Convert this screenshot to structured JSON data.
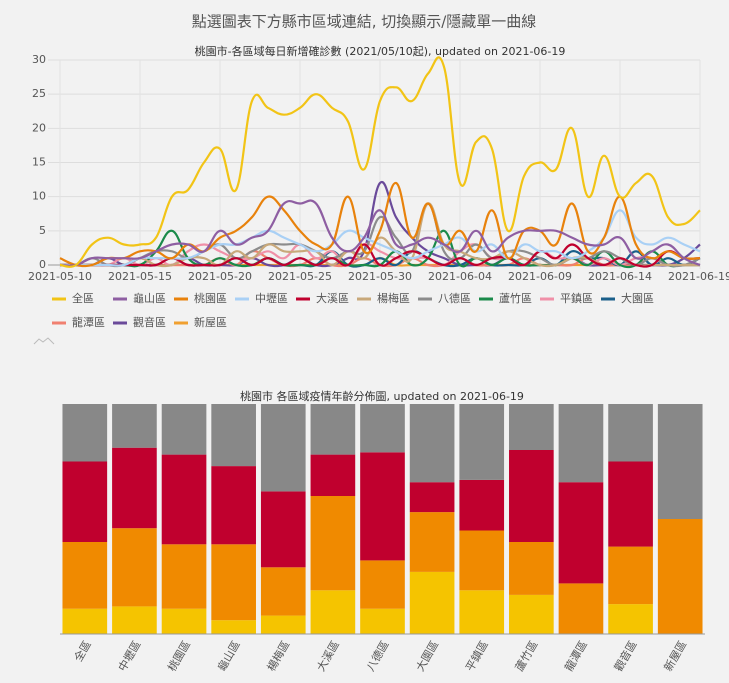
{
  "header": {
    "title": "點選圖表下方縣市區域連結, 切換顯示/隱藏單一曲線"
  },
  "chart_data": [
    {
      "type": "line",
      "title": "桃園市-各區域每日新增確診數 (2021/05/10起), updated on 2021-06-19",
      "x": [
        "2021-05-10",
        "2021-05-11",
        "2021-05-12",
        "2021-05-13",
        "2021-05-14",
        "2021-05-15",
        "2021-05-16",
        "2021-05-17",
        "2021-05-18",
        "2021-05-19",
        "2021-05-20",
        "2021-05-21",
        "2021-05-22",
        "2021-05-23",
        "2021-05-24",
        "2021-05-25",
        "2021-05-26",
        "2021-05-27",
        "2021-05-28",
        "2021-05-29",
        "2021-05-30",
        "2021-05-31",
        "2021-06-01",
        "2021-06-02",
        "2021-06-03",
        "2021-06-04",
        "2021-06-05",
        "2021-06-06",
        "2021-06-07",
        "2021-06-08",
        "2021-06-09",
        "2021-06-10",
        "2021-06-11",
        "2021-06-12",
        "2021-06-13",
        "2021-06-14",
        "2021-06-15",
        "2021-06-16",
        "2021-06-17",
        "2021-06-18",
        "2021-06-19"
      ],
      "xticks": [
        "2021-05-10",
        "2021-05-15",
        "2021-05-20",
        "2021-05-25",
        "2021-05-30",
        "2021-06-04",
        "2021-06-09",
        "2021-06-14",
        "2021-06-19"
      ],
      "ylim": [
        0,
        30
      ],
      "yticks": [
        0,
        5,
        10,
        15,
        20,
        25,
        30
      ],
      "grid": true,
      "series": [
        {
          "name": "全區",
          "color": "#f2c416",
          "values": [
            0,
            0,
            3,
            4,
            3,
            3,
            4,
            10,
            11,
            15,
            17,
            11,
            24,
            23,
            22,
            23,
            25,
            23,
            21,
            14,
            24,
            26,
            24,
            28,
            29,
            12,
            18,
            17,
            5,
            13,
            15,
            14,
            20,
            10,
            16,
            10,
            12,
            13,
            7,
            6,
            8
          ]
        },
        {
          "name": "龜山區",
          "color": "#8e5ea2",
          "values": [
            0,
            0,
            1,
            1,
            1,
            1,
            2,
            3,
            3,
            2,
            5,
            3,
            4,
            5,
            9,
            9,
            9,
            4,
            2,
            4,
            8,
            3,
            3,
            4,
            3,
            2,
            5,
            2,
            4,
            5,
            5,
            5,
            4,
            3,
            3,
            4,
            1,
            2,
            3,
            1,
            0
          ]
        },
        {
          "name": "桃園區",
          "color": "#e8820c",
          "values": [
            1,
            0,
            0,
            1,
            1,
            2,
            2,
            1,
            3,
            2,
            4,
            5,
            7,
            10,
            8,
            5,
            3,
            3,
            10,
            2,
            5,
            12,
            4,
            9,
            3,
            5,
            2,
            8,
            1,
            5,
            5,
            3,
            9,
            2,
            4,
            10,
            3,
            1,
            2,
            1,
            1
          ]
        },
        {
          "name": "中壢區",
          "color": "#a9d0f5",
          "values": [
            0,
            0,
            0,
            0,
            0,
            1,
            1,
            1,
            1,
            2,
            3,
            3,
            4,
            5,
            4,
            3,
            2,
            3,
            5,
            4,
            3,
            2,
            1,
            2,
            3,
            4,
            2,
            3,
            1,
            3,
            2,
            2,
            1,
            2,
            4,
            8,
            4,
            3,
            4,
            3,
            2
          ]
        },
        {
          "name": "大溪區",
          "color": "#c0002e",
          "values": [
            0,
            0,
            0,
            0,
            0,
            0,
            0,
            1,
            0,
            0,
            0,
            1,
            0,
            1,
            0,
            1,
            0,
            1,
            0,
            3,
            0,
            1,
            2,
            1,
            0,
            1,
            0,
            1,
            1,
            0,
            2,
            1,
            3,
            1,
            0,
            1,
            0,
            0,
            2,
            1,
            1
          ]
        },
        {
          "name": "楊梅區",
          "color": "#c8a87a",
          "values": [
            0,
            0,
            0,
            0,
            0,
            1,
            0,
            0,
            1,
            1,
            0,
            2,
            1,
            3,
            2,
            2,
            2,
            0,
            2,
            1,
            4,
            2,
            1,
            9,
            3,
            2,
            1,
            1,
            2,
            1,
            0,
            0,
            1,
            1,
            0,
            1,
            0,
            0,
            0,
            0,
            0
          ]
        },
        {
          "name": "八德區",
          "color": "#8c8c8c",
          "values": [
            0,
            0,
            1,
            0,
            0,
            1,
            2,
            2,
            1,
            2,
            3,
            1,
            2,
            3,
            3,
            3,
            2,
            1,
            2,
            2,
            7,
            4,
            2,
            9,
            2,
            1,
            3,
            1,
            2,
            2,
            1,
            0,
            1,
            1,
            2,
            1,
            0,
            1,
            0,
            0,
            1
          ]
        },
        {
          "name": "蘆竹區",
          "color": "#1a8a4a",
          "values": [
            0,
            0,
            0,
            0,
            0,
            0,
            2,
            5,
            1,
            0,
            1,
            0,
            0,
            1,
            0,
            0,
            0,
            1,
            0,
            0,
            0,
            2,
            0,
            1,
            5,
            0,
            1,
            0,
            1,
            0,
            0,
            0,
            1,
            0,
            2,
            0,
            0,
            2,
            0,
            0,
            0
          ]
        },
        {
          "name": "平鎮區",
          "color": "#f090a8",
          "values": [
            0,
            0,
            0,
            0,
            1,
            0,
            1,
            0,
            2,
            3,
            2,
            1,
            1,
            2,
            1,
            3,
            1,
            2,
            0,
            3,
            2,
            1,
            1,
            1,
            0,
            2,
            3,
            1,
            1,
            0,
            2,
            1,
            1,
            0,
            1,
            0,
            1,
            1,
            0,
            0,
            0
          ]
        },
        {
          "name": "大園區",
          "color": "#1a5f8a",
          "values": [
            0,
            0,
            0,
            0,
            0,
            0,
            0,
            1,
            0,
            0,
            0,
            1,
            0,
            1,
            0,
            0,
            0,
            2,
            0,
            0,
            1,
            0,
            2,
            1,
            0,
            0,
            1,
            0,
            0,
            0,
            1,
            0,
            2,
            1,
            1,
            0,
            2,
            0,
            1,
            0,
            1
          ]
        },
        {
          "name": "龍潭區",
          "color": "#f08070",
          "values": [
            0,
            0,
            0,
            0,
            0,
            1,
            0,
            0,
            0,
            0,
            1,
            0,
            2,
            1,
            0,
            0,
            1,
            0,
            0,
            1,
            0,
            0,
            1,
            0,
            0,
            1,
            0,
            0,
            0,
            1,
            0,
            0,
            0,
            1,
            0,
            0,
            0,
            1,
            0,
            0,
            0
          ]
        },
        {
          "name": "觀音區",
          "color": "#6a4a9a",
          "values": [
            0,
            0,
            0,
            1,
            0,
            0,
            0,
            0,
            1,
            0,
            0,
            0,
            1,
            0,
            0,
            1,
            0,
            0,
            1,
            2,
            12,
            7,
            4,
            2,
            1,
            0,
            0,
            0,
            1,
            0,
            0,
            0,
            1,
            0,
            0,
            0,
            0,
            0,
            0,
            1,
            3
          ]
        },
        {
          "name": "新屋區",
          "color": "#f0a030",
          "values": [
            0,
            0,
            0,
            0,
            0,
            0,
            0,
            0,
            0,
            0,
            0,
            0,
            0,
            0,
            0,
            0,
            0,
            0,
            0,
            0,
            1,
            0,
            0,
            0,
            0,
            0,
            0,
            0,
            0,
            0,
            0,
            0,
            0,
            0,
            0,
            0,
            0,
            0,
            0,
            0,
            0
          ]
        }
      ]
    },
    {
      "type": "bar",
      "stacked": true,
      "title": "桃園市 各區域疫情年齡分佈圖, updated on 2021-06-19",
      "categories": [
        "全區",
        "中壢區",
        "桃園區",
        "龜山區",
        "楊梅區",
        "大溪區",
        "八德區",
        "大園區",
        "平鎮區",
        "蘆竹區",
        "龍潭區",
        "觀音區",
        "新屋區"
      ],
      "ylim": [
        0,
        100
      ],
      "series": [
        {
          "color": "#f5c400",
          "values": [
            11,
            12,
            11,
            6,
            8,
            19,
            11,
            27,
            19,
            17,
            0,
            13,
            0
          ]
        },
        {
          "color": "#f08a00",
          "values": [
            29,
            34,
            28,
            33,
            21,
            41,
            21,
            26,
            26,
            23,
            22,
            25,
            50
          ]
        },
        {
          "color": "#c0002e",
          "values": [
            35,
            35,
            39,
            34,
            33,
            18,
            47,
            13,
            22,
            40,
            44,
            37,
            0
          ]
        },
        {
          "color": "#888888",
          "values": [
            25,
            19,
            22,
            27,
            38,
            22,
            21,
            34,
            33,
            20,
            34,
            25,
            50
          ]
        }
      ]
    }
  ]
}
